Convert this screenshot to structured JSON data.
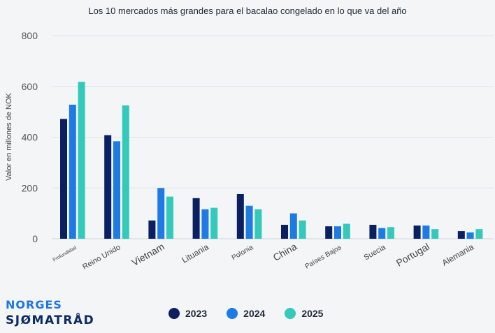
{
  "chart_data": {
    "type": "bar",
    "title": "Los 10 mercados más grandes para el bacalao congelado en lo que va del año",
    "ylabel": "Valor en millones de NOK",
    "xlabel": "",
    "ylim": [
      0,
      800
    ],
    "yticks": [
      0,
      200,
      400,
      600,
      800
    ],
    "grid": true,
    "legend": "bottom",
    "categories": [
      "Profundidad",
      "Reino Unido",
      "Vietnam",
      "Lituania",
      "Polonia",
      "China",
      "Países Bajos",
      "Suecia",
      "Portugal",
      "Alemania"
    ],
    "series": [
      {
        "name": "2023",
        "color": "#0b2060",
        "values": [
          472,
          408,
          72,
          160,
          176,
          55,
          49,
          55,
          52,
          30
        ]
      },
      {
        "name": "2024",
        "color": "#1e7be6",
        "values": [
          528,
          384,
          200,
          116,
          130,
          100,
          49,
          42,
          52,
          25
        ]
      },
      {
        "name": "2025",
        "color": "#33c9bb",
        "values": [
          618,
          525,
          166,
          122,
          116,
          72,
          59,
          46,
          38,
          38
        ]
      }
    ]
  },
  "brand": {
    "line1": "NORGES",
    "line2": "SJØMATRÅD"
  }
}
